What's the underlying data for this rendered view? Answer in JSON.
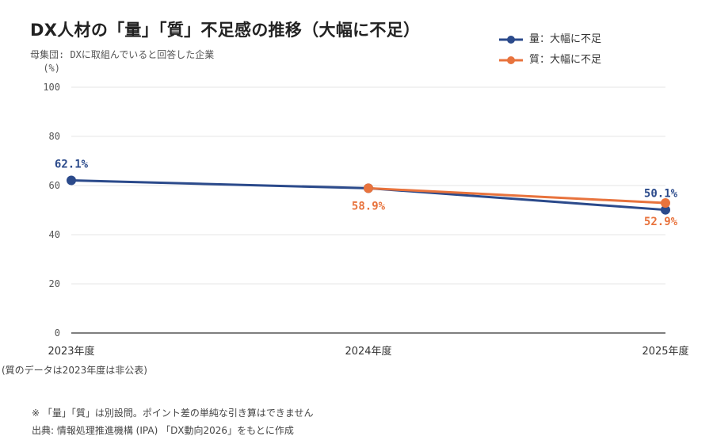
{
  "title": "DX人材の「量」「質」不足感の推移（大幅に不足）",
  "subtitle": "母集団: DXに取組んでいると回答した企業",
  "y_unit": "(%)",
  "legend": [
    {
      "label": "量：大幅に不足",
      "color": "#2b4a8b"
    },
    {
      "label": "質：大幅に不足",
      "color": "#e8733d"
    }
  ],
  "x_note": "(質のデータは2023年度は非公表)",
  "footnote": "※ 「量」「質」は別設問。ポイント差の単純な引き算はできません",
  "source": "出典: 情報処理推進機構 (IPA) 「DX動向2026」をもとに作成",
  "chart_data": {
    "type": "line",
    "title": "DX人材の「量」「質」不足感の推移（大幅に不足）",
    "ylabel": "(%)",
    "ylim": [
      0,
      100
    ],
    "yticks": [
      0,
      20,
      40,
      60,
      80,
      100
    ],
    "grid": true,
    "legend_position": "top-right",
    "categories": [
      "2023年度",
      "2024年度",
      "2025年度"
    ],
    "series": [
      {
        "name": "量：大幅に不足",
        "color": "#2b4a8b",
        "values": [
          62.1,
          58.9,
          50.1
        ],
        "labels": [
          "62.1%",
          null,
          "50.1%"
        ]
      },
      {
        "name": "質：大幅に不足",
        "color": "#e8733d",
        "values": [
          null,
          58.9,
          52.9
        ],
        "labels": [
          null,
          "58.9%",
          "52.9%"
        ]
      }
    ]
  }
}
